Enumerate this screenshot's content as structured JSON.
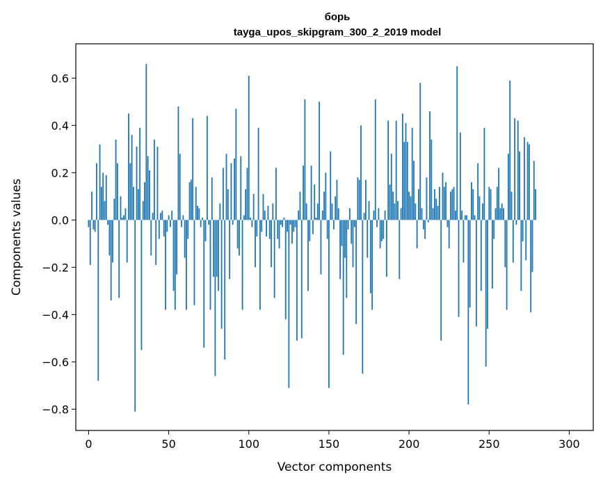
{
  "chart_data": {
    "type": "bar",
    "title": "борь",
    "subtitle": "tayga_upos_skipgram_300_2_2019 model",
    "xlabel": "Vector components",
    "ylabel": "Components values",
    "xlim": [
      -8,
      315
    ],
    "ylim": [
      -0.89,
      0.745
    ],
    "xticks": [
      0,
      50,
      100,
      150,
      200,
      250,
      300
    ],
    "xtick_labels": [
      "0",
      "50",
      "100",
      "150",
      "200",
      "250",
      "300"
    ],
    "yticks": [
      -0.8,
      -0.6,
      -0.4,
      -0.2,
      0.0,
      0.2,
      0.4,
      0.6
    ],
    "ytick_labels": [
      "−0.8",
      "−0.6",
      "−0.4",
      "−0.2",
      "0.0",
      "0.2",
      "0.4",
      "0.6"
    ],
    "bar_color": "#1f77b4",
    "grid": false,
    "values": [
      -0.03,
      -0.19,
      0.12,
      -0.04,
      -0.05,
      0.24,
      -0.68,
      0.32,
      0.14,
      0.2,
      0.08,
      0.19,
      -0.02,
      -0.15,
      -0.34,
      -0.18,
      0.09,
      0.34,
      0.24,
      -0.33,
      0.1,
      0.01,
      0.02,
      0.05,
      -0.18,
      0.45,
      0.24,
      0.36,
      0.14,
      -0.81,
      0.31,
      0.13,
      0.39,
      -0.55,
      0.08,
      0.16,
      0.66,
      0.27,
      0.21,
      -0.15,
      0.03,
      0.34,
      -0.19,
      0.31,
      -0.08,
      0.03,
      0.04,
      -0.07,
      -0.38,
      -0.05,
      0.02,
      -0.03,
      0.04,
      -0.3,
      -0.38,
      -0.23,
      0.48,
      0.28,
      -0.03,
      0.02,
      -0.16,
      -0.38,
      -0.08,
      0.16,
      0.17,
      0.43,
      -0.36,
      0.14,
      0.06,
      0.05,
      -0.03,
      0.01,
      -0.54,
      -0.09,
      0.44,
      -0.02,
      -0.38,
      0.18,
      -0.24,
      -0.66,
      -0.24,
      -0.3,
      0.07,
      -0.46,
      0.22,
      -0.59,
      0.28,
      0.13,
      -0.25,
      0.24,
      -0.02,
      0.26,
      0.47,
      -0.12,
      -0.15,
      0.27,
      -0.38,
      0.02,
      0.13,
      0.22,
      0.61,
      0.01,
      -0.03,
      0.11,
      -0.2,
      -0.07,
      0.39,
      -0.38,
      -0.05,
      0.11,
      0.04,
      -0.07,
      0.06,
      -0.08,
      -0.2,
      0.07,
      -0.33,
      0.22,
      -0.08,
      -0.12,
      -0.02,
      -0.03,
      0.01,
      -0.42,
      -0.05,
      -0.71,
      -0.02,
      -0.1,
      -0.05,
      -0.03,
      -0.51,
      0.04,
      0.12,
      -0.5,
      0.23,
      0.51,
      0.07,
      -0.3,
      -0.09,
      0.23,
      -0.06,
      0.15,
      0.01,
      0.07,
      0.5,
      -0.23,
      0.04,
      0.12,
      0.2,
      -0.08,
      -0.71,
      0.29,
      0.07,
      -0.04,
      0.1,
      0.17,
      0.05,
      -0.25,
      -0.11,
      -0.57,
      -0.16,
      -0.33,
      -0.04,
      0.05,
      -0.1,
      -0.2,
      -0.03,
      -0.44,
      0.18,
      0.17,
      0.4,
      -0.65,
      0.03,
      0.17,
      -0.16,
      0.08,
      -0.31,
      -0.38,
      0.04,
      0.51,
      -0.03,
      0.05,
      -0.12,
      -0.09,
      -0.08,
      0.04,
      -0.24,
      0.42,
      0.15,
      0.28,
      0.12,
      0.07,
      0.42,
      0.08,
      -0.25,
      0.05,
      0.45,
      0.33,
      0.41,
      0.33,
      0.12,
      0.1,
      0.39,
      0.25,
      0.07,
      -0.12,
      0.13,
      0.58,
      0.05,
      -0.04,
      -0.08,
      0.18,
      -0.01,
      0.46,
      0.34,
      0.05,
      0.13,
      0.09,
      0.06,
      0.14,
      -0.51,
      0.2,
      0.14,
      0.16,
      -0.03,
      -0.12,
      0.12,
      0.13,
      0.14,
      0.04,
      0.65,
      -0.41,
      0.37,
      0.04,
      -0.18,
      0.02,
      0.02,
      -0.78,
      -0.37,
      0.16,
      0.13,
      0.02,
      -0.45,
      0.24,
      0.1,
      -0.3,
      0.07,
      0.39,
      -0.62,
      -0.46,
      0.14,
      0.13,
      -0.29,
      -0.08,
      0.05,
      0.14,
      0.22,
      0.05,
      0.07,
      0.05,
      -0.2,
      -0.38,
      0.28,
      0.59,
      0.12,
      -0.18,
      0.43,
      -0.02,
      0.42,
      0.29,
      -0.3,
      -0.09,
      0.35,
      -0.17,
      0.33,
      0.32,
      -0.39,
      -0.22,
      0.25,
      0.13
    ]
  }
}
